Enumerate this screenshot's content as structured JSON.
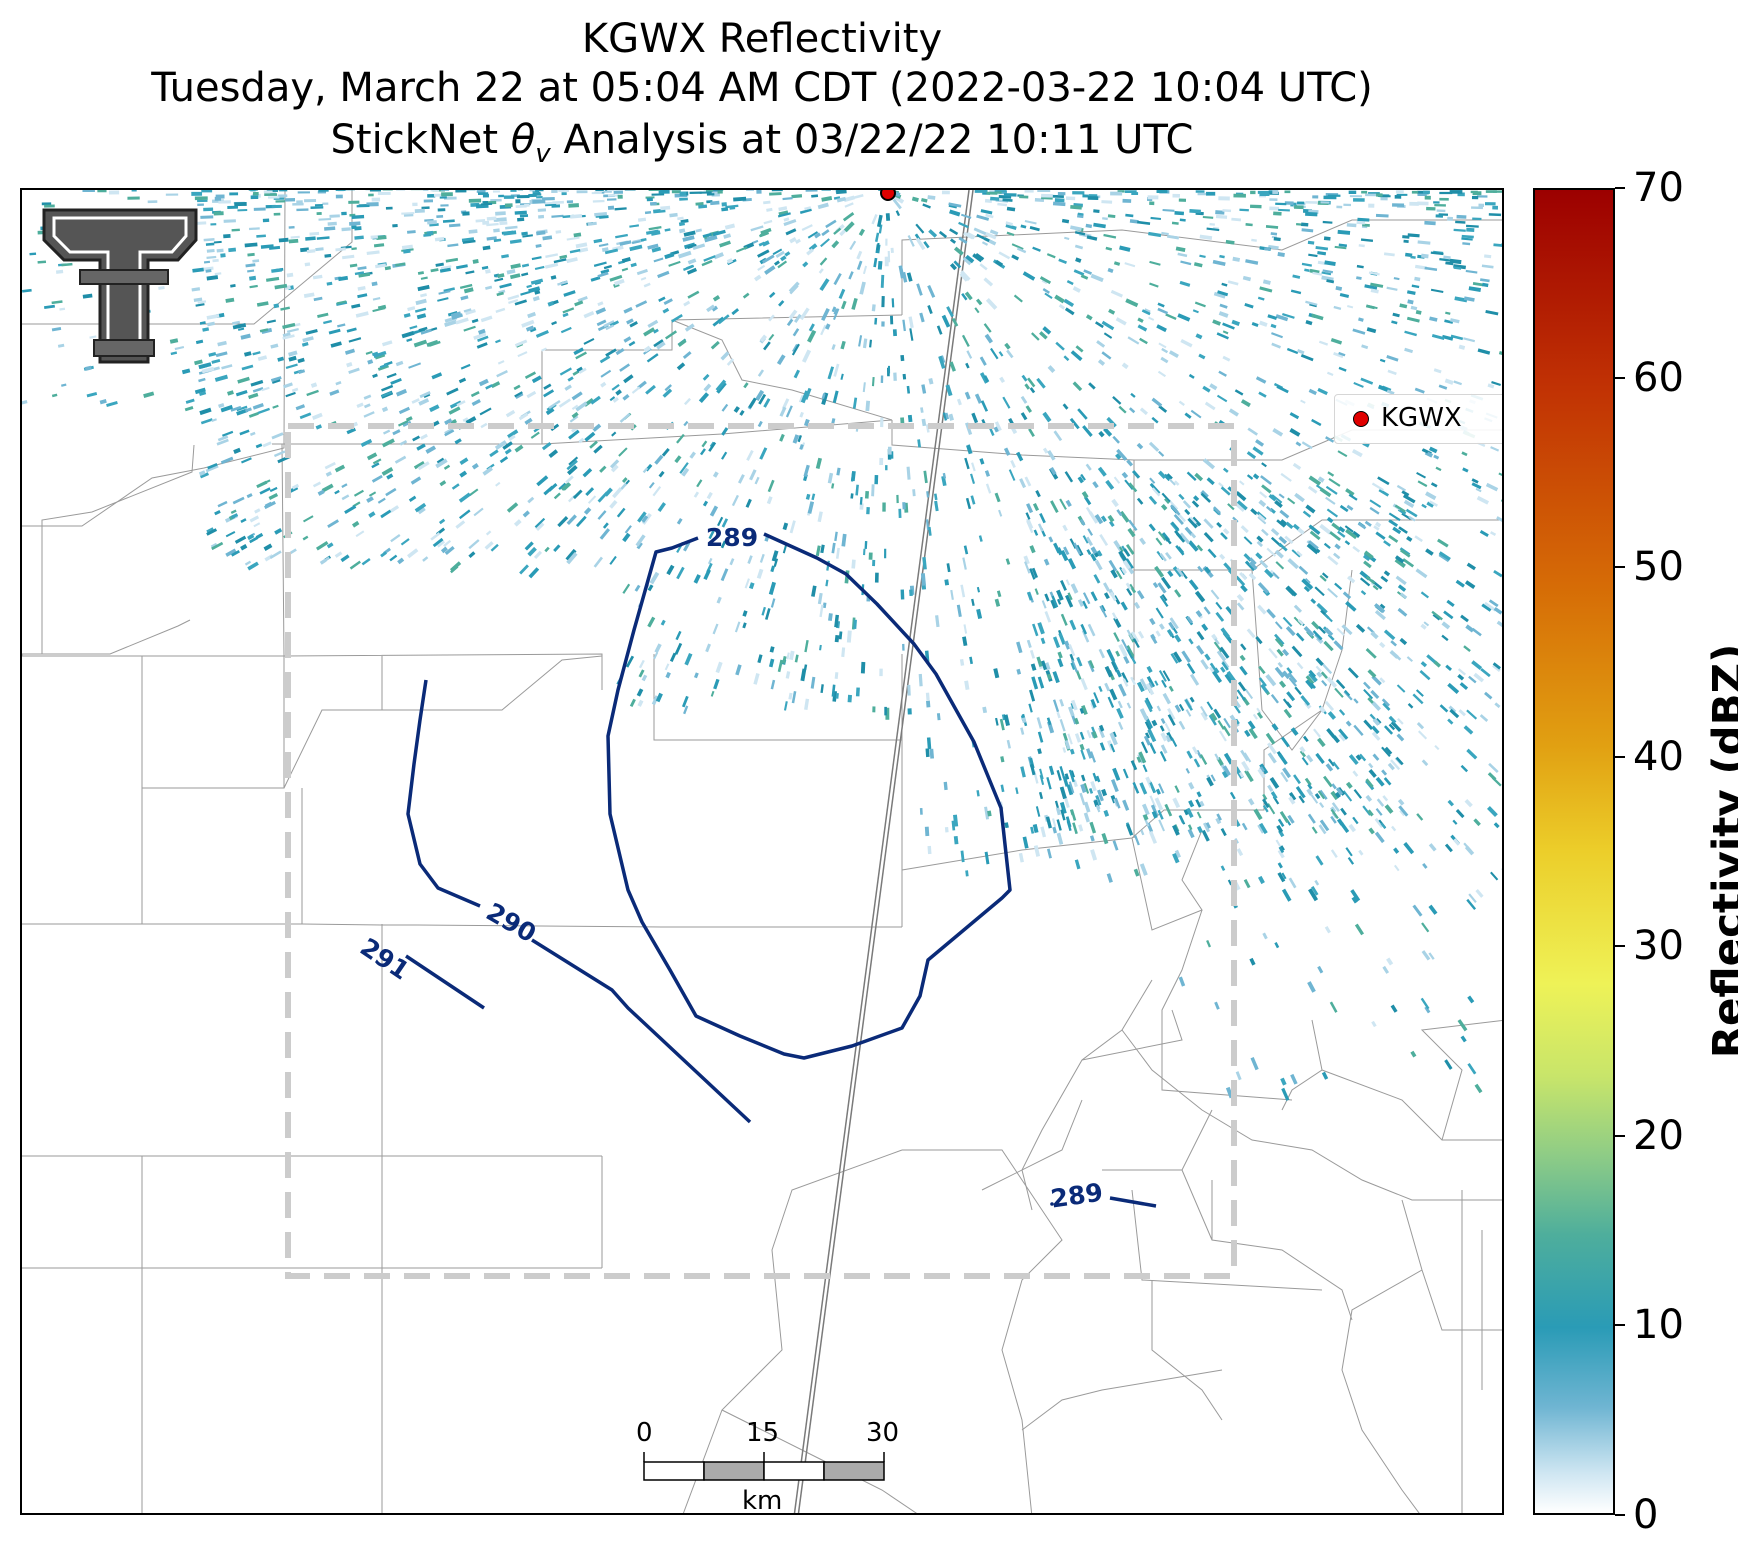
{
  "title": {
    "line1": "KGWX Reflectivity",
    "line2": "Tuesday, March 22 at 05:04 AM CDT (2022-03-22 10:04 UTC)",
    "line3": "StickNet θv Analysis at 03/22/22 10:11 UTC"
  },
  "legend": {
    "label": "KGWX",
    "marker_color": "#e00000"
  },
  "colorbar": {
    "title": "Reflectivity (dBZ)",
    "ticks": [
      "0",
      "10",
      "20",
      "30",
      "40",
      "50",
      "60",
      "70"
    ]
  },
  "contours": {
    "labels": [
      "289",
      "290",
      "291",
      "289"
    ],
    "color": "#0a2a78"
  },
  "scale_bar": {
    "ticks": [
      "0",
      "15",
      "30"
    ],
    "unit": "km"
  },
  "colors": {
    "analysis_box": "#cccccc",
    "county_lines": "#9a9a9a"
  }
}
